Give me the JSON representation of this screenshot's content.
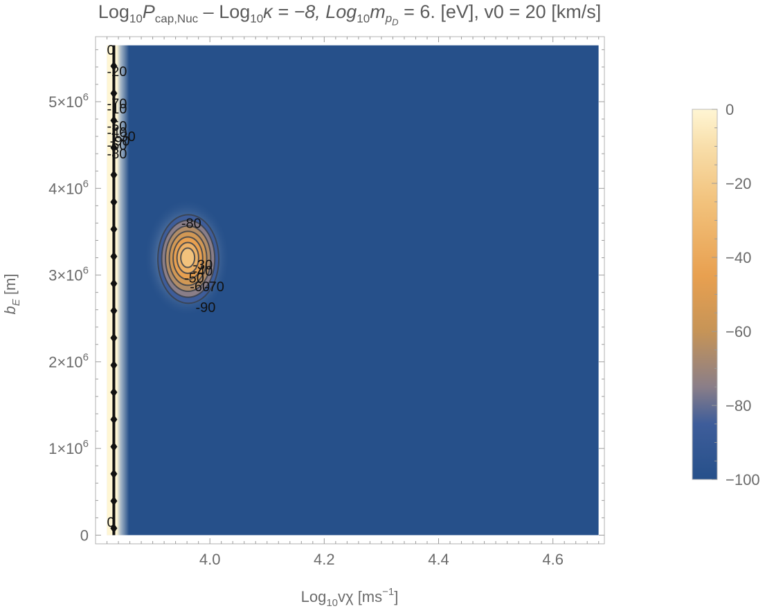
{
  "chart_data": {
    "type": "heatmap",
    "title": {
      "p1": "Log",
      "s1": "10",
      "p2": "P",
      "s2": "cap,Nuc",
      "p3": " – Log",
      "s3": "10",
      "p4": "κ = −8, Log",
      "s4": "10",
      "p5": "m",
      "s5": "p",
      "s5b": "D",
      "p6": " = 6. [eV], v0 = 20 [km/s]"
    },
    "xlabel": {
      "pre": "Log",
      "sub": "10",
      "main": "vχ [ms",
      "sup": "−1",
      "post": "]"
    },
    "ylabel": {
      "main": "b",
      "sub": "E",
      "post": " [m]"
    },
    "xlim": [
      3.8,
      4.69
    ],
    "ylim": [
      -0.1,
      5.75
    ],
    "xticks": [
      {
        "v": 4.0,
        "label": "4.0"
      },
      {
        "v": 4.2,
        "label": "4.2"
      },
      {
        "v": 4.4,
        "label": "4.4"
      },
      {
        "v": 4.6,
        "label": "4.6"
      }
    ],
    "yticks": [
      {
        "v": 0,
        "m": "0",
        "e": ""
      },
      {
        "v": 1,
        "m": "1×10",
        "e": "6"
      },
      {
        "v": 2,
        "m": "2×10",
        "e": "6"
      },
      {
        "v": 3,
        "m": "3×10",
        "e": "6"
      },
      {
        "v": 4,
        "m": "4×10",
        "e": "6"
      },
      {
        "v": 5,
        "m": "5×10",
        "e": "6"
      }
    ],
    "data_extent": {
      "x": [
        3.82,
        4.68
      ],
      "y": [
        0,
        5.65
      ]
    },
    "background_value": -100,
    "edge_column": {
      "x": 3.832,
      "value": 0
    },
    "peak": {
      "x": 3.96,
      "y": 3.2,
      "value": -25
    },
    "contour_levels": [
      -90,
      -80,
      -70,
      -60,
      -50,
      -40,
      -30
    ],
    "contour_labels": [
      {
        "text": "-80",
        "x": 3.95,
        "y": 3.6
      },
      {
        "text": "-30",
        "x": 3.97,
        "y": 3.12
      },
      {
        "text": "-40",
        "x": 3.97,
        "y": 3.05
      },
      {
        "text": "-50",
        "x": 3.955,
        "y": 2.97
      },
      {
        "text": "-60",
        "x": 3.965,
        "y": 2.87
      },
      {
        "text": "-70",
        "x": 3.99,
        "y": 2.87
      },
      {
        "text": "-90",
        "x": 3.975,
        "y": 2.63
      },
      {
        "text": "0",
        "x": 3.82,
        "y": 5.6
      },
      {
        "text": "-20",
        "x": 3.82,
        "y": 5.35
      },
      {
        "text": "-70",
        "x": 3.82,
        "y": 4.98
      },
      {
        "text": "-10",
        "x": 3.82,
        "y": 4.92
      },
      {
        "text": "-50",
        "x": 3.82,
        "y": 4.72
      },
      {
        "text": "-40",
        "x": 3.82,
        "y": 4.65
      },
      {
        "text": "-30",
        "x": 3.835,
        "y": 4.6
      },
      {
        "text": "-90",
        "x": 3.825,
        "y": 4.55
      },
      {
        "text": "-60",
        "x": 3.82,
        "y": 4.5
      },
      {
        "text": "-80",
        "x": 3.82,
        "y": 4.4
      },
      {
        "text": "0",
        "x": 3.82,
        "y": 0.15
      }
    ],
    "colorbar": {
      "ticks": [
        {
          "v": 0,
          "label": "0"
        },
        {
          "v": -20,
          "label": "−20"
        },
        {
          "v": -40,
          "label": "−40"
        },
        {
          "v": -60,
          "label": "−60"
        },
        {
          "v": -80,
          "label": "−80"
        },
        {
          "v": -100,
          "label": "−100"
        }
      ],
      "range": [
        -100,
        0
      ],
      "stops": [
        {
          "v": -100,
          "color": "#26508a"
        },
        {
          "v": -85,
          "color": "#3e5d9a"
        },
        {
          "v": -75,
          "color": "#8a7e88"
        },
        {
          "v": -60,
          "color": "#c69457"
        },
        {
          "v": -45,
          "color": "#e8a050"
        },
        {
          "v": -25,
          "color": "#f2c27c"
        },
        {
          "v": -10,
          "color": "#f8deaa"
        },
        {
          "v": 0,
          "color": "#fff6d4"
        }
      ]
    },
    "legend_position": "right",
    "grid": false
  }
}
